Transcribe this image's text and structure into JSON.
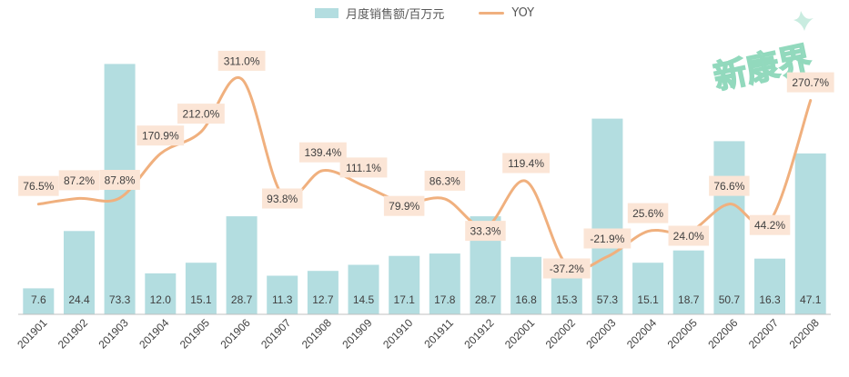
{
  "legend": {
    "bar_label": "月度销售额/百万元",
    "line_label": "YOY"
  },
  "watermark": "新康界",
  "colors": {
    "bar": "#b3dde0",
    "line": "#f0b07e",
    "label_bg": "#fbe5d6",
    "text": "#404040",
    "axis": "#bfbfbf",
    "watermark": "#7fd3b2"
  },
  "chart_data": {
    "type": "bar",
    "categories": [
      "201901",
      "201902",
      "201903",
      "201904",
      "201905",
      "201906",
      "201907",
      "201908",
      "201909",
      "201910",
      "201911",
      "201912",
      "202001",
      "202002",
      "202003",
      "202004",
      "202005",
      "202006",
      "202007",
      "202008"
    ],
    "series": [
      {
        "name": "月度销售额/百万元",
        "type": "bar",
        "values": [
          7.6,
          24.4,
          73.3,
          12.0,
          15.1,
          28.7,
          11.3,
          12.7,
          14.5,
          17.1,
          17.8,
          28.7,
          16.8,
          15.3,
          57.3,
          15.1,
          18.7,
          50.7,
          16.3,
          47.1
        ],
        "labels": [
          "7.6",
          "24.4",
          "73.3",
          "12.0",
          "15.1",
          "28.7",
          "11.3",
          "12.7",
          "14.5",
          "17.1",
          "17.8",
          "28.7",
          "16.8",
          "15.3",
          "57.3",
          "15.1",
          "18.7",
          "50.7",
          "16.3",
          "47.1"
        ]
      },
      {
        "name": "YOY",
        "type": "line",
        "values": [
          76.5,
          87.2,
          87.8,
          170.9,
          212.0,
          311.0,
          93.8,
          139.4,
          111.1,
          79.9,
          86.3,
          33.3,
          119.4,
          -37.2,
          -21.9,
          25.6,
          24.0,
          76.6,
          44.2,
          270.7
        ],
        "labels": [
          "76.5%",
          "87.2%",
          "87.8%",
          "170.9%",
          "212.0%",
          "311.0%",
          "93.8%",
          "139.4%",
          "111.1%",
          "79.9%",
          "86.3%",
          "33.3%",
          "119.4%",
          "-37.2%",
          "-21.9%",
          "25.6%",
          "24.0%",
          "76.6%",
          "44.2%",
          "270.7%"
        ]
      }
    ],
    "y_left": [
      0,
      75
    ],
    "y_right": [
      -130,
      350
    ],
    "grid": false,
    "legend_position": "top-center"
  }
}
